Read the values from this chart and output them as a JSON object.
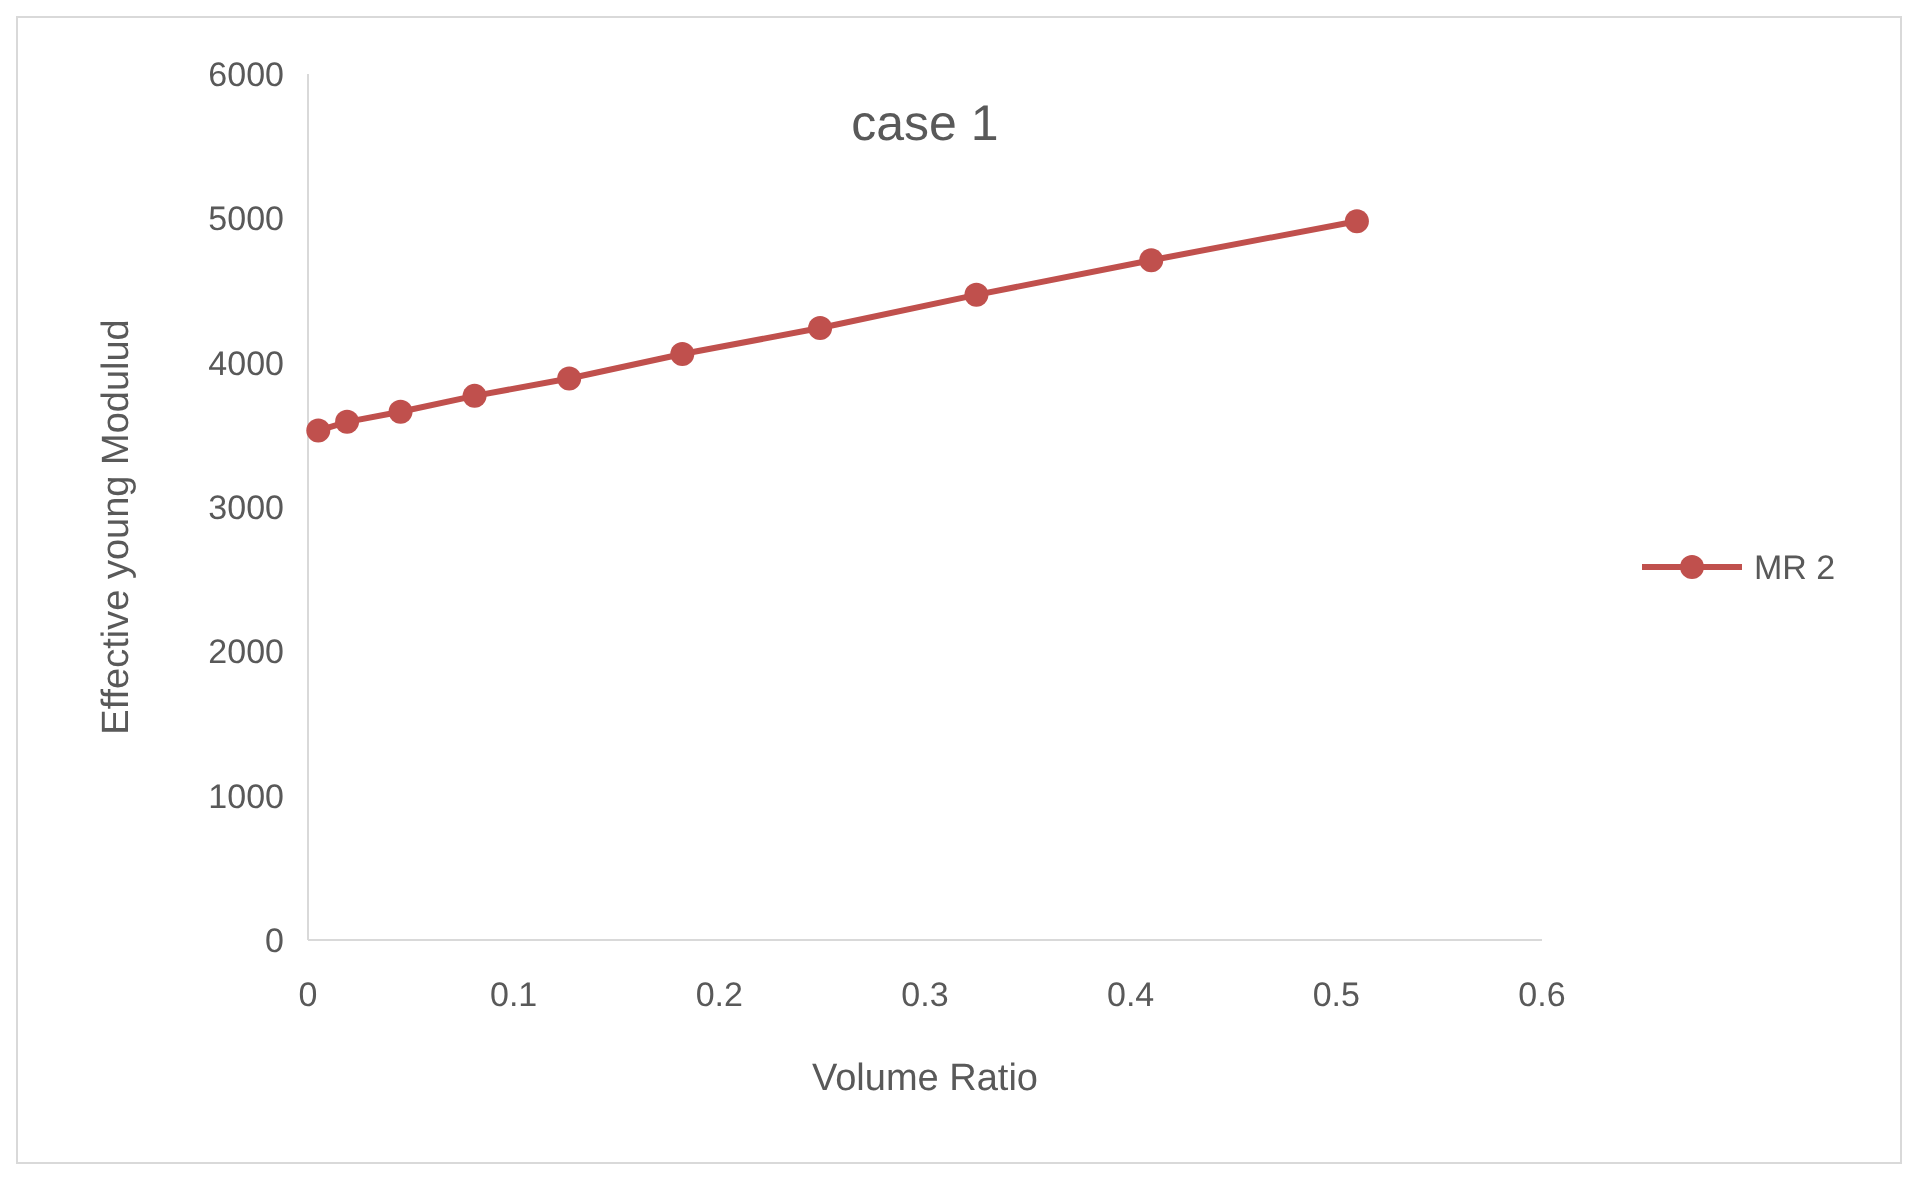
{
  "chart_data": {
    "type": "line",
    "title": "case 1",
    "xlabel": "Volume Ratio",
    "ylabel": "Effective young Modulud",
    "x": [
      0.005,
      0.019,
      0.045,
      0.081,
      0.127,
      0.182,
      0.249,
      0.325,
      0.41,
      0.51
    ],
    "series": [
      {
        "name": "MR 2",
        "color": "#c0504d",
        "values": [
          3530,
          3590,
          3660,
          3770,
          3890,
          4060,
          4240,
          4470,
          4710,
          4980
        ]
      }
    ],
    "xlim": [
      0,
      0.6
    ],
    "xticks": [
      0,
      0.1,
      0.2,
      0.3,
      0.4,
      0.5,
      0.6
    ],
    "ylim": [
      0,
      6000
    ],
    "yticks": [
      0,
      1000,
      2000,
      3000,
      4000,
      5000,
      6000
    ],
    "grid": false,
    "legend": "right",
    "marker": "circle",
    "line_style": "solid"
  }
}
